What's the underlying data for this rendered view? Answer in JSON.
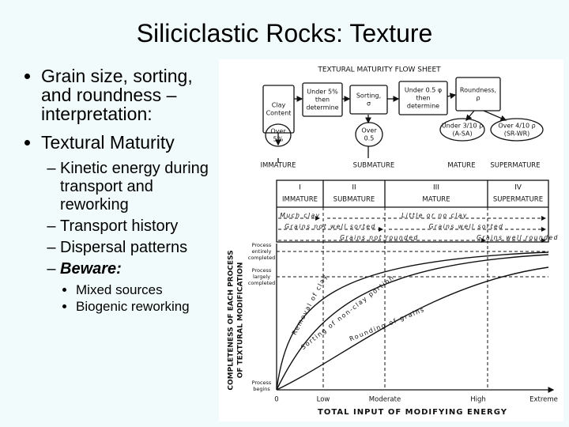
{
  "title": "Siliciclastic Rocks: Texture",
  "bullets": [
    "Grain size, sorting, and roundness – interpretation:",
    "Textural Maturity"
  ],
  "sub_bullets": [
    "Kinetic energy during transport and reworking",
    "Transport history",
    "Dispersal patterns",
    "Beware:"
  ],
  "sub_sub_bullets": [
    "Mixed sources",
    "Biogenic reworking"
  ],
  "figure": {
    "title": "TEXTURAL MATURITY FLOW SHEET",
    "boxes": [
      {
        "lines": [
          "Clay",
          "Content"
        ]
      },
      {
        "lines": [
          "Under 5%",
          "then",
          "determine"
        ]
      },
      {
        "lines": [
          "Sorting,",
          "σ"
        ]
      },
      {
        "lines": [
          "Under 0.5 φ",
          "then",
          "determine"
        ]
      },
      {
        "lines": [
          "Roundness,",
          "ρ"
        ]
      },
      {
        "lines": [
          "Over",
          "5%"
        ]
      },
      {
        "lines": [
          "Over",
          "0.5"
        ]
      },
      {
        "lines": [
          "Under 3/10 ρ",
          "(A-SA)"
        ]
      },
      {
        "lines": [
          "Over 4/10 ρ",
          "(SR-WR)"
        ]
      }
    ],
    "stages": [
      "IMMATURE",
      "SUBMATURE",
      "MATURE",
      "SUPERMATURE"
    ],
    "table": {
      "numerals": [
        "I",
        "II",
        "III",
        "IV"
      ],
      "headers": [
        "IMMATURE",
        "SUBMATURE",
        "MATURE",
        "SUPERMATURE"
      ],
      "rows": [
        "Much clay",
        "Little or no clay",
        "Grains not well sorted",
        "Grains well sorted",
        "Grains not rounded",
        "Grains well rounded"
      ]
    },
    "graph": {
      "y_axis_title": [
        "COMPLETENESS OF EACH PROCESS",
        "OF TEXTURAL MODIFICATION"
      ],
      "y_labels": [
        [
          "Process",
          "entirely",
          "completed"
        ],
        [
          "Process",
          "largely",
          "completed"
        ],
        [
          "Process",
          "begins"
        ]
      ],
      "x_labels": [
        "0",
        "Low",
        "Moderate",
        "High",
        "Extreme"
      ],
      "x_axis_title": "TOTAL INPUT OF MODIFYING ENERGY",
      "curve_labels": [
        "Removal of clay",
        "Sorting of non-clay portion",
        "Rounding of grains"
      ]
    }
  }
}
